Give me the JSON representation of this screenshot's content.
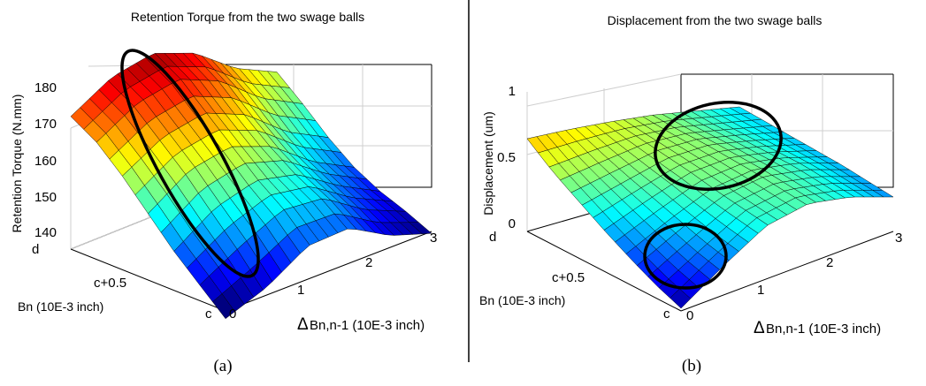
{
  "chart_data": [
    {
      "type": "surface",
      "title": "Retention Torque from the two swage balls",
      "caption": "(a)",
      "zlabel": "Retention Torque (N.mm)",
      "xlabel_symbol": "Δ",
      "xlabel": "Bn,n-1 (10E-3 inch)",
      "ylabel": "Bn (10E-3 inch)",
      "x_ticks": [
        "0",
        "1",
        "2",
        "3"
      ],
      "y_ticks": [
        "c",
        "c+0.5",
        "d"
      ],
      "z_ticks": [
        "140",
        "150",
        "160",
        "170",
        "180"
      ],
      "xlim": [
        0,
        3
      ],
      "ylim": [
        0,
        1
      ],
      "zlim": [
        138,
        181
      ],
      "grid": true,
      "colormap": "jet",
      "annotation": "ellipse along high-torque ridge",
      "z_grid": [
        [
          136.0,
          140.0,
          146.5,
          147.0,
          141.0,
          137.5
        ],
        [
          142.0,
          148.0,
          153.0,
          152.0,
          145.0,
          140.5
        ],
        [
          148.0,
          155.0,
          158.0,
          155.5,
          148.5,
          143.0
        ],
        [
          155.0,
          162.0,
          164.0,
          160.0,
          152.0,
          146.5
        ],
        [
          162.0,
          168.0,
          170.0,
          165.5,
          157.0,
          151.5
        ],
        [
          168.0,
          174.0,
          176.0,
          171.5,
          163.0,
          157.5
        ],
        [
          172.0,
          178.0,
          180.0,
          176.0,
          168.0,
          163.0
        ]
      ]
    },
    {
      "type": "surface",
      "title": "Displacement from the two swage balls",
      "caption": "(b)",
      "zlabel": "Displacement (um)",
      "xlabel_symbol": "Δ",
      "xlabel": "Bn,n-1 (10E-3 inch)",
      "ylabel": "Bn (10E-3 inch)",
      "x_ticks": [
        "0",
        "1",
        "2",
        "3"
      ],
      "y_ticks": [
        "c",
        "c+0.5",
        "d"
      ],
      "z_ticks": [
        "0",
        "0.5",
        "1"
      ],
      "xlim": [
        0,
        3
      ],
      "ylim": [
        0,
        1
      ],
      "zlim": [
        0,
        1
      ],
      "grid": true,
      "colormap": "jet",
      "annotation": "two ellipses marking the low-displacement regions",
      "z_grid": [
        [
          0.02,
          0.22,
          0.4,
          0.45,
          0.38,
          0.26
        ],
        [
          0.1,
          0.27,
          0.43,
          0.47,
          0.4,
          0.28
        ],
        [
          0.2,
          0.34,
          0.46,
          0.49,
          0.42,
          0.3
        ],
        [
          0.31,
          0.41,
          0.5,
          0.5,
          0.42,
          0.31
        ],
        [
          0.43,
          0.48,
          0.53,
          0.51,
          0.42,
          0.32
        ],
        [
          0.55,
          0.56,
          0.56,
          0.51,
          0.42,
          0.33
        ],
        [
          0.7,
          0.65,
          0.59,
          0.52,
          0.43,
          0.34
        ]
      ]
    }
  ]
}
